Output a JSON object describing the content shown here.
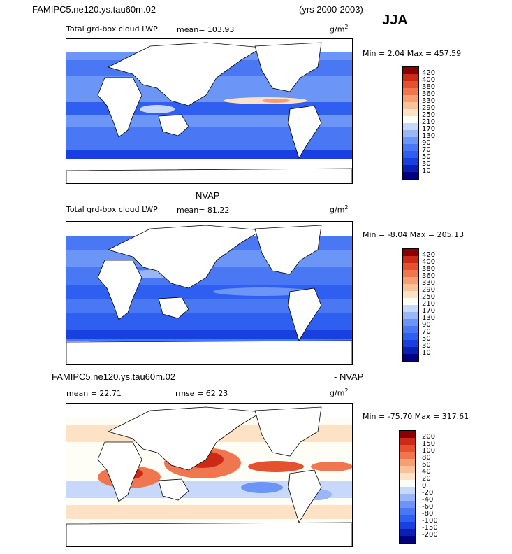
{
  "header": {
    "model_name": "FAMIPC5.ne120.ys.tau60m.02",
    "years": "(yrs 2000-2003)",
    "season": "JJA"
  },
  "panels": [
    {
      "variable": "Total grd-box cloud LWP",
      "mean_label": "mean=  103.93",
      "units": "g/m",
      "units_exp": "2",
      "minmax": "Min =    2.04  Max =  457.59",
      "colorbar": {
        "levels": [
          "10",
          "30",
          "50",
          "70",
          "90",
          "130",
          "170",
          "210",
          "250",
          "290",
          "330",
          "360",
          "380",
          "400",
          "420"
        ],
        "colors": [
          "#000080",
          "#0a1fb4",
          "#1a3fe0",
          "#2f5ff0",
          "#4a78f5",
          "#6b95f7",
          "#98b6f8",
          "#c7d8fb",
          "#fffef6",
          "#fde2c6",
          "#fbc29a",
          "#f79e72",
          "#f07650",
          "#e5502f",
          "#cc2a17",
          "#8a0000"
        ]
      }
    },
    {
      "title": "NVAP",
      "variable": "Total grd-box cloud LWP",
      "mean_label": "mean=   81.22",
      "units": "g/m",
      "units_exp": "2",
      "minmax": "Min =   -8.04  Max =  205.13",
      "colorbar": {
        "levels": [
          "10",
          "30",
          "50",
          "70",
          "90",
          "130",
          "170",
          "210",
          "250",
          "290",
          "330",
          "360",
          "380",
          "400",
          "420"
        ],
        "colors": [
          "#000080",
          "#0a1fb4",
          "#1a3fe0",
          "#2f5ff0",
          "#4a78f5",
          "#6b95f7",
          "#98b6f8",
          "#c7d8fb",
          "#fffef6",
          "#fde2c6",
          "#fbc29a",
          "#f79e72",
          "#f07650",
          "#e5502f",
          "#cc2a17",
          "#8a0000"
        ]
      }
    },
    {
      "title_left": "FAMIPC5.ne120.ys.tau60m.02",
      "title_right": "- NVAP",
      "mean_label": "mean =   22.71",
      "rmse_label": "rmse =   62.23",
      "units": "g/m",
      "units_exp": "2",
      "minmax": "Min =  -75.70  Max =  317.61",
      "colorbar": {
        "levels": [
          "-200",
          "-150",
          "-100",
          "-80",
          "-60",
          "-40",
          "-20",
          "0",
          "20",
          "40",
          "60",
          "80",
          "100",
          "150",
          "200"
        ],
        "colors": [
          "#000080",
          "#0a1fb4",
          "#1a3fe0",
          "#2f5ff0",
          "#4a78f5",
          "#6b95f7",
          "#98b6f8",
          "#c7d8fb",
          "#fffef6",
          "#fde2c6",
          "#fbc29a",
          "#f79e72",
          "#f07650",
          "#e5502f",
          "#cc2a17",
          "#8a0000"
        ]
      }
    }
  ],
  "chart_data": [
    {
      "type": "heatmap",
      "title": "Total grd-box cloud LWP",
      "model": "FAMIPC5.ne120.ys.tau60m.02",
      "season": "JJA",
      "units": "g/m^2",
      "mean": 103.93,
      "min": 2.04,
      "max": 457.59,
      "contour_levels": [
        10,
        30,
        50,
        70,
        90,
        130,
        170,
        210,
        250,
        290,
        330,
        360,
        380,
        400,
        420
      ]
    },
    {
      "type": "heatmap",
      "title": "NVAP Total grd-box cloud LWP",
      "units": "g/m^2",
      "mean": 81.22,
      "min": -8.04,
      "max": 205.13,
      "contour_levels": [
        10,
        30,
        50,
        70,
        90,
        130,
        170,
        210,
        250,
        290,
        330,
        360,
        380,
        400,
        420
      ]
    },
    {
      "type": "heatmap",
      "title": "FAMIPC5.ne120.ys.tau60m.02 - NVAP",
      "units": "g/m^2",
      "mean": 22.71,
      "rmse": 62.23,
      "min": -75.7,
      "max": 317.61,
      "contour_levels": [
        -200,
        -150,
        -100,
        -80,
        -60,
        -40,
        -20,
        0,
        20,
        40,
        60,
        80,
        100,
        150,
        200
      ]
    }
  ]
}
